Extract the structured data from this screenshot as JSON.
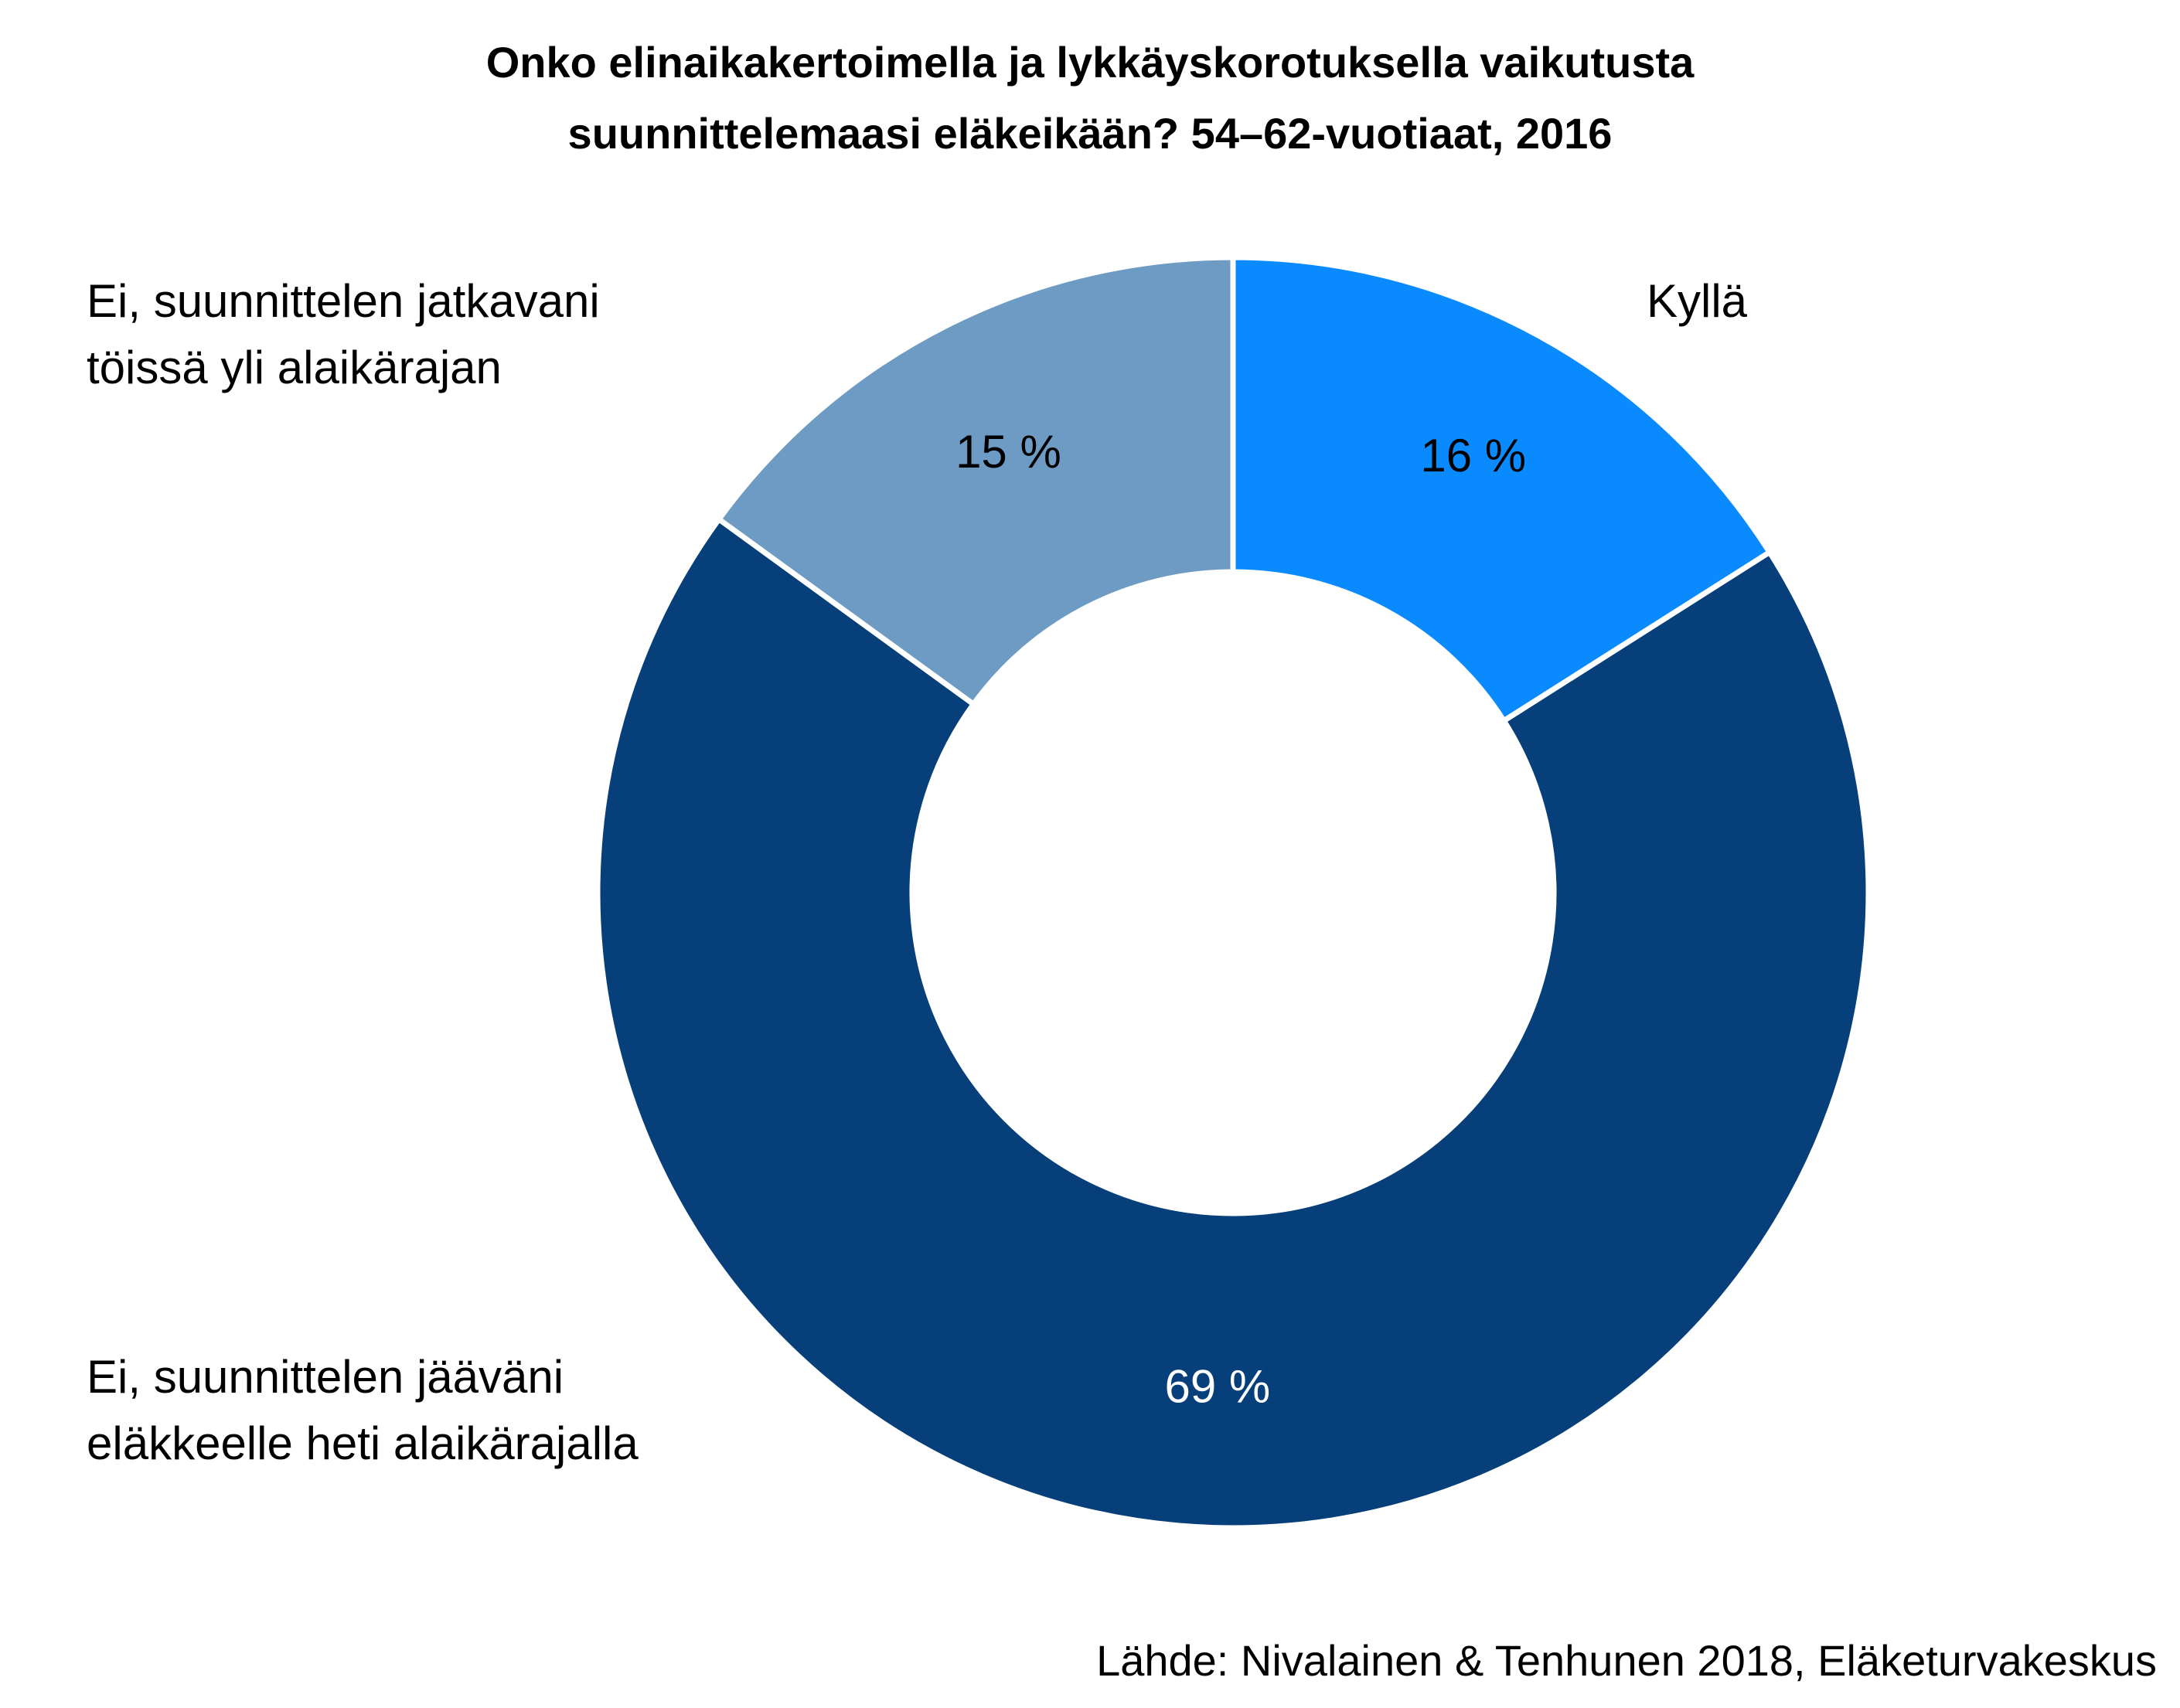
{
  "chart_data": {
    "type": "pie",
    "variant": "donut",
    "title": [
      "Onko elinaikakertoimella ja lykkäyskorotuksella vaikutusta",
      "suunnittelemaasi eläkeikään? 54–62-vuotiaat, 2016"
    ],
    "categories": [
      "Kyllä",
      "Ei, suunnittelen jääväni eläkkeelle heti alaikärajalla",
      "Ei, suunnittelen jatkavani töissä yli alaikärajan"
    ],
    "category_label_lines": [
      [
        "Kyllä"
      ],
      [
        "Ei, suunnittelen jääväni",
        "eläkkeelle heti alaikärajalla"
      ],
      [
        "Ei, suunnittelen jatkavani",
        "töissä yli alaikärajan"
      ]
    ],
    "values": [
      16,
      69,
      15
    ],
    "unit": "%",
    "data_labels": [
      "16 %",
      "69 %",
      "15 %"
    ],
    "colors": [
      "#0a8aff",
      "#063f7a",
      "#6e9bc3"
    ],
    "data_label_colors": [
      "#000000",
      "#ffffff",
      "#000000"
    ],
    "start_angle": "12 o'clock",
    "direction": "clockwise",
    "legend": "none"
  },
  "source": "Lähde: Nivalainen & Tenhunen 2018, Eläketurvakeskus"
}
